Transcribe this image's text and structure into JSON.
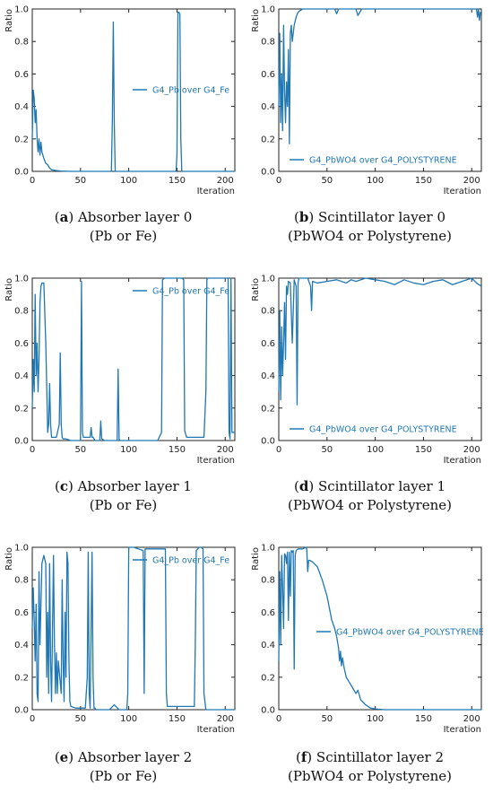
{
  "panels": [
    {
      "id": "a",
      "letter": "a",
      "caption_main": "Absorber layer 0",
      "caption_sub": "(Pb or Fe)"
    },
    {
      "id": "b",
      "letter": "b",
      "caption_main": "Scintillator layer 0",
      "caption_sub": "(PbWO4 or Polystyrene)"
    },
    {
      "id": "c",
      "letter": "c",
      "caption_main": "Absorber layer 1",
      "caption_sub": "(Pb or Fe)"
    },
    {
      "id": "d",
      "letter": "d",
      "caption_main": "Scintillator layer 1",
      "caption_sub": "(PbWO4 or Polystyrene)"
    },
    {
      "id": "e",
      "letter": "e",
      "caption_main": "Absorber layer 2",
      "caption_sub": "(Pb or Fe)"
    },
    {
      "id": "f",
      "letter": "f",
      "caption_main": "Scintillator layer 2",
      "caption_sub": "(PbWO4 or Polystyrene)"
    }
  ],
  "colors": {
    "line": "#1f77b4",
    "axis": "#222222"
  },
  "chart_data": [
    {
      "type": "line",
      "panel": "a",
      "xlabel": "Iteration",
      "ylabel": "Ratio",
      "xlim": [
        0,
        210
      ],
      "ylim": [
        0,
        1
      ],
      "xticks": [
        0,
        50,
        100,
        150,
        200
      ],
      "yticks": [
        0.0,
        0.2,
        0.4,
        0.6,
        0.8,
        1.0
      ],
      "legend_position": "center-right",
      "series": [
        {
          "name": "G4_Pb over G4_Fe",
          "x": [
            0,
            1,
            2,
            3,
            4,
            5,
            6,
            7,
            8,
            9,
            10,
            12,
            14,
            16,
            18,
            20,
            25,
            30,
            40,
            60,
            82,
            83,
            84,
            85,
            86,
            87,
            100,
            120,
            149,
            150,
            151,
            152,
            153,
            154,
            155,
            170,
            210
          ],
          "y": [
            0.2,
            0.5,
            0.45,
            0.3,
            0.38,
            0.2,
            0.12,
            0.2,
            0.1,
            0.18,
            0.12,
            0.08,
            0.05,
            0.04,
            0.02,
            0.01,
            0.005,
            0.002,
            0,
            0,
            0,
            0.3,
            0.92,
            0.3,
            0,
            0,
            0,
            0,
            0,
            0.1,
            0.98,
            0.98,
            0.97,
            0.2,
            0,
            0,
            0
          ]
        }
      ]
    },
    {
      "type": "line",
      "panel": "b",
      "xlabel": "Iteration",
      "ylabel": "Ratio",
      "xlim": [
        0,
        210
      ],
      "ylim": [
        0,
        1
      ],
      "xticks": [
        0,
        50,
        100,
        150,
        200
      ],
      "yticks": [
        0.0,
        0.2,
        0.4,
        0.6,
        0.8,
        1.0
      ],
      "legend_position": "lower-center",
      "series": [
        {
          "name": "G4_PbWO4 over G4_POLYSTYRENE",
          "x": [
            0,
            1,
            2,
            3,
            4,
            5,
            6,
            7,
            8,
            9,
            10,
            11,
            12,
            13,
            14,
            16,
            18,
            20,
            22,
            25,
            30,
            58,
            60,
            62,
            80,
            82,
            84,
            86,
            100,
            150,
            205,
            206,
            207,
            208,
            209,
            210
          ],
          "y": [
            0.4,
            0.85,
            0.3,
            0.6,
            0.25,
            0.9,
            0.5,
            0.3,
            0.55,
            0.4,
            0.75,
            0.17,
            0.85,
            0.9,
            0.8,
            0.9,
            0.95,
            0.98,
            0.99,
            1.0,
            1.0,
            1.0,
            0.97,
            1.0,
            1.0,
            0.96,
            0.98,
            1.0,
            1.0,
            1.0,
            1.0,
            0.95,
            1.0,
            0.93,
            0.98,
            0.98
          ]
        }
      ]
    },
    {
      "type": "line",
      "panel": "c",
      "xlabel": "Iteration",
      "ylabel": "Ratio",
      "xlim": [
        0,
        210
      ],
      "ylim": [
        0,
        1
      ],
      "xticks": [
        0,
        50,
        100,
        150,
        200
      ],
      "yticks": [
        0.0,
        0.2,
        0.4,
        0.6,
        0.8,
        1.0
      ],
      "legend_position": "upper-right",
      "series": [
        {
          "name": "G4_Pb over G4_Fe",
          "x": [
            0,
            1,
            2,
            3,
            4,
            5,
            6,
            7,
            8,
            9,
            10,
            12,
            14,
            16,
            17,
            18,
            19,
            20,
            25,
            28,
            29,
            30,
            31,
            32,
            35,
            40,
            50,
            51,
            52,
            53,
            55,
            60,
            61,
            62,
            63,
            65,
            70,
            71,
            72,
            75,
            80,
            88,
            89,
            90,
            91,
            95,
            100,
            130,
            134,
            135,
            137,
            150,
            155,
            157,
            158,
            160,
            175,
            178,
            180,
            181,
            182,
            183,
            200,
            203,
            204,
            205,
            206,
            207,
            210
          ],
          "y": [
            0.2,
            0.5,
            0.3,
            0.9,
            0.4,
            0.6,
            0.3,
            0.5,
            0.85,
            0.95,
            0.97,
            0.97,
            0.6,
            0.05,
            0.1,
            0.35,
            0.1,
            0.02,
            0.02,
            0.1,
            0.54,
            0.1,
            0.02,
            0.01,
            0.01,
            0,
            0,
            0.98,
            0.05,
            0.02,
            0.02,
            0.02,
            0.08,
            0.02,
            0.02,
            0,
            0,
            0.12,
            0.01,
            0,
            0,
            0,
            0.44,
            0.01,
            0,
            0,
            0,
            0,
            0.05,
            0.99,
            1.0,
            1.0,
            1.0,
            0.99,
            0.06,
            0.02,
            0.02,
            0.02,
            0.3,
            0.99,
            1.0,
            1.0,
            1.0,
            1.0,
            0.05,
            0.01,
            1.0,
            0.05,
            0.05
          ]
        }
      ]
    },
    {
      "type": "line",
      "panel": "d",
      "xlabel": "Iteration",
      "ylabel": "Ratio",
      "xlim": [
        0,
        210
      ],
      "ylim": [
        0,
        1
      ],
      "xticks": [
        0,
        50,
        100,
        150,
        200
      ],
      "yticks": [
        0.0,
        0.2,
        0.4,
        0.6,
        0.8,
        1.0
      ],
      "legend_position": "lower-center",
      "series": [
        {
          "name": "G4_PbWO4 over G4_POLYSTYRENE",
          "x": [
            0,
            1,
            2,
            3,
            4,
            5,
            6,
            7,
            8,
            9,
            10,
            12,
            14,
            16,
            18,
            19,
            20,
            21,
            22,
            25,
            30,
            33,
            34,
            35,
            40,
            50,
            60,
            70,
            75,
            80,
            90,
            100,
            110,
            120,
            130,
            140,
            150,
            160,
            170,
            180,
            190,
            200,
            205,
            210
          ],
          "y": [
            0.3,
            0.8,
            0.25,
            0.7,
            0.4,
            0.6,
            0.85,
            0.5,
            0.95,
            0.9,
            0.98,
            0.97,
            0.6,
            0.99,
            0.95,
            0.22,
            0.97,
            1.0,
            1.0,
            1.0,
            1.0,
            0.95,
            0.8,
            0.98,
            0.97,
            0.98,
            0.99,
            0.97,
            0.99,
            0.98,
            1.0,
            0.99,
            0.98,
            0.96,
            0.99,
            0.97,
            0.96,
            0.98,
            0.99,
            0.96,
            0.98,
            1.0,
            0.97,
            0.95
          ]
        }
      ]
    },
    {
      "type": "line",
      "panel": "e",
      "xlabel": "Iteration",
      "ylabel": "Ratio",
      "xlim": [
        0,
        210
      ],
      "ylim": [
        0,
        1
      ],
      "xticks": [
        0,
        50,
        100,
        150,
        200
      ],
      "yticks": [
        0.0,
        0.2,
        0.4,
        0.6,
        0.8,
        1.0
      ],
      "legend_position": "upper-right",
      "series": [
        {
          "name": "G4_Pb over G4_Fe",
          "x": [
            0,
            1,
            2,
            3,
            4,
            5,
            6,
            7,
            8,
            10,
            12,
            14,
            15,
            16,
            17,
            18,
            19,
            20,
            21,
            22,
            23,
            24,
            25,
            26,
            27,
            30,
            31,
            32,
            33,
            34,
            35,
            36,
            37,
            38,
            39,
            40,
            45,
            55,
            57,
            58,
            59,
            60,
            62,
            63,
            64,
            65,
            66,
            70,
            80,
            85,
            90,
            98,
            99,
            100,
            105,
            110,
            115,
            116,
            117,
            118,
            120,
            138,
            139,
            140,
            145,
            168,
            169,
            170,
            173,
            175,
            177,
            178,
            180,
            210
          ],
          "y": [
            0.5,
            0.75,
            0.55,
            0.3,
            0.65,
            0.1,
            0.05,
            0.85,
            0.4,
            0.9,
            0.95,
            0.9,
            0.2,
            0.6,
            0.1,
            0.9,
            0.3,
            0.05,
            0.5,
            0.95,
            0.4,
            0.1,
            0.35,
            0.1,
            0.3,
            0.1,
            0.8,
            0.3,
            0.05,
            0.6,
            0.2,
            0.97,
            0.9,
            0.3,
            0.05,
            0.02,
            0.01,
            0.01,
            0.2,
            0.97,
            0.1,
            0.01,
            0.97,
            0.2,
            0.01,
            0.01,
            0,
            0,
            0,
            0.03,
            0,
            0,
            0.1,
            1.0,
            1.0,
            0.99,
            0.98,
            0.1,
            0.99,
            0.99,
            0.99,
            0.99,
            0.1,
            0.02,
            0.02,
            0.02,
            0.4,
            0.98,
            1.0,
            1.0,
            0.99,
            0.1,
            0,
            0
          ]
        }
      ]
    },
    {
      "type": "line",
      "panel": "f",
      "xlabel": "Iteration",
      "ylabel": "Ratio",
      "xlim": [
        0,
        210
      ],
      "ylim": [
        0,
        1
      ],
      "xticks": [
        0,
        50,
        100,
        150,
        200
      ],
      "yticks": [
        0.0,
        0.2,
        0.4,
        0.6,
        0.8,
        1.0
      ],
      "legend_position": "center-right",
      "series": [
        {
          "name": "G4_PbWO4 over G4_POLYSTYRENE",
          "x": [
            0,
            1,
            2,
            3,
            4,
            5,
            6,
            7,
            8,
            9,
            10,
            11,
            12,
            13,
            14,
            15,
            16,
            17,
            18,
            20,
            25,
            28,
            29,
            30,
            31,
            32,
            35,
            40,
            45,
            50,
            55,
            58,
            60,
            62,
            63,
            64,
            65,
            66,
            68,
            70,
            72,
            75,
            80,
            82,
            85,
            90,
            95,
            100,
            110,
            120,
            150,
            210
          ],
          "y": [
            0.3,
            0.85,
            0.4,
            0.95,
            0.75,
            0.5,
            0.96,
            0.95,
            0.9,
            0.97,
            0.55,
            0.97,
            0.7,
            0.98,
            0.97,
            0.98,
            0.25,
            0.95,
            0.98,
            0.99,
            0.99,
            1.0,
            0.99,
            0.85,
            0.92,
            0.92,
            0.91,
            0.88,
            0.8,
            0.7,
            0.55,
            0.5,
            0.45,
            0.38,
            0.3,
            0.36,
            0.27,
            0.32,
            0.25,
            0.2,
            0.18,
            0.15,
            0.1,
            0.12,
            0.06,
            0.03,
            0.01,
            0.005,
            0,
            0,
            0,
            0
          ]
        }
      ]
    }
  ]
}
